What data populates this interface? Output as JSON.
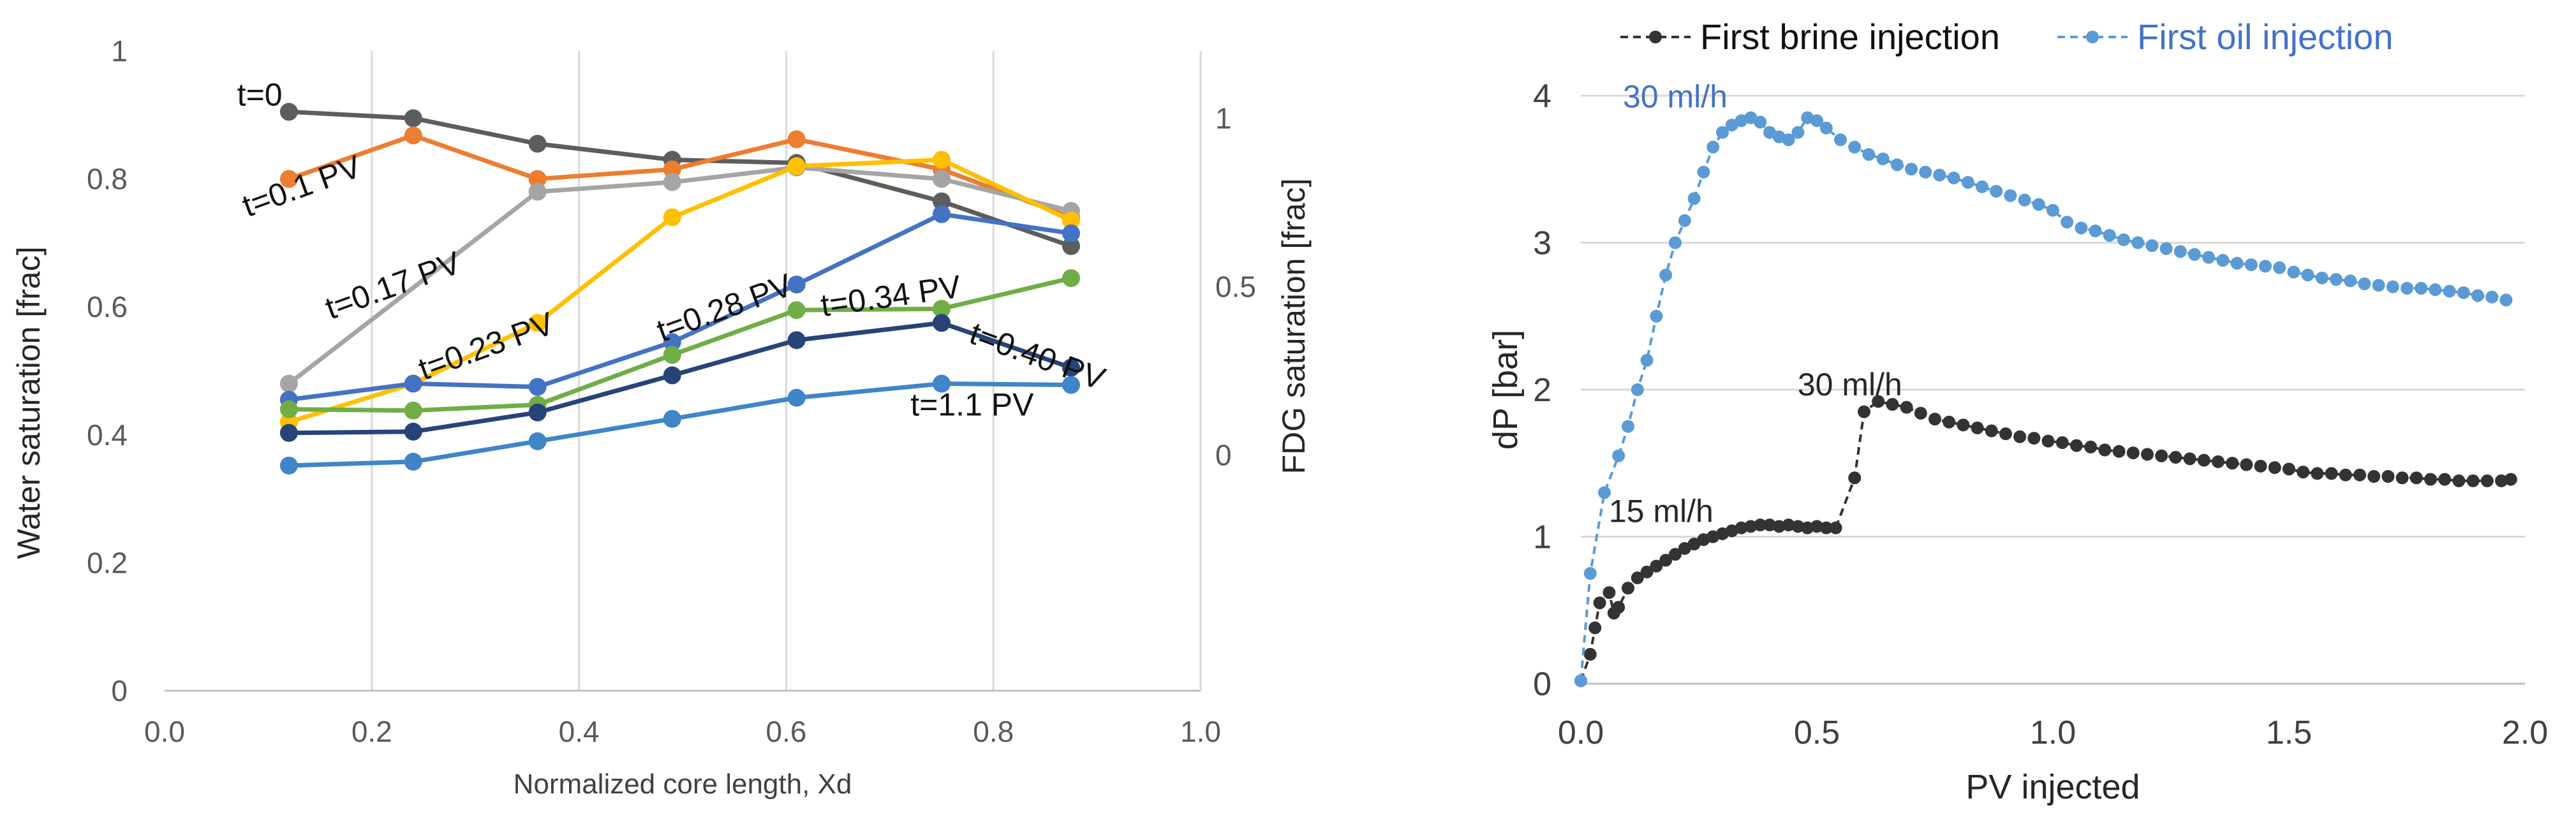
{
  "chart_data": [
    {
      "type": "line",
      "title": "",
      "xlabel": "Normalized core length, Xd",
      "ylabel": "Water saturation [frac]",
      "y2label": "FDG saturation [frac]",
      "xlim": [
        0.0,
        1.0
      ],
      "ylim": [
        0,
        1
      ],
      "xticks": [
        "0.0",
        "0.2",
        "0.4",
        "0.6",
        "0.8",
        "1.0"
      ],
      "yticks": [
        "0",
        "0.2",
        "0.4",
        "0.6",
        "0.8",
        "1"
      ],
      "y2ticks": [
        "0",
        "0.5",
        "1"
      ],
      "grid": "vertical",
      "x": [
        0.12,
        0.24,
        0.36,
        0.49,
        0.61,
        0.75,
        0.875
      ],
      "series": [
        {
          "name": "t=0",
          "label": "t=0",
          "color": "#5d5d5d",
          "values": [
            0.905,
            0.895,
            0.855,
            0.83,
            0.825,
            0.765,
            0.695
          ]
        },
        {
          "name": "t=0.1 PV",
          "label": "t=0.1 PV",
          "color": "#ed7d31",
          "values": [
            0.8,
            0.868,
            0.8,
            0.815,
            0.862,
            0.815,
            0.74
          ]
        },
        {
          "name": "t=0.17 PV",
          "label": "t=0.17 PV",
          "color": "#a5a5a5",
          "values": [
            0.48,
            null,
            0.78,
            0.795,
            0.818,
            0.8,
            0.75
          ]
        },
        {
          "name": "t=0.23 PV",
          "label": "t=0.23 PV",
          "color": "#ffc000",
          "values": [
            0.42,
            0.48,
            0.575,
            0.74,
            0.82,
            0.83,
            0.735
          ]
        },
        {
          "name": "t=0.28 PV",
          "label": "t=0.28 PV",
          "color": "#4472c4",
          "values": [
            0.455,
            0.48,
            0.475,
            0.545,
            0.635,
            0.745,
            0.715
          ]
        },
        {
          "name": "t=0.34 PV",
          "label": "t=0.34 PV",
          "color": "#70ad47",
          "values": [
            0.44,
            0.438,
            0.447,
            0.525,
            0.595,
            0.597,
            0.645
          ]
        },
        {
          "name": "t=0.40 PV",
          "label": "t=0.40 PV",
          "color": "#264478",
          "values": [
            0.403,
            0.405,
            0.435,
            0.493,
            0.548,
            0.575,
            0.505
          ]
        },
        {
          "name": "t=1.1 PV",
          "label": "t=1.1 PV",
          "color": "#3f85c8",
          "values": [
            0.352,
            0.358,
            0.39,
            0.425,
            0.458,
            0.48,
            0.478
          ]
        }
      ]
    },
    {
      "type": "line",
      "title": "",
      "xlabel": "PV injected",
      "ylabel": "dP [bar]",
      "xlim": [
        0.0,
        2.0
      ],
      "ylim": [
        0,
        4
      ],
      "xticks": [
        "0.0",
        "0.5",
        "1.0",
        "1.5",
        "2.0"
      ],
      "yticks": [
        "0",
        "1",
        "2",
        "3",
        "4"
      ],
      "grid": "horizontal",
      "legend": "top",
      "annotations": [
        {
          "text": "30 ml/h",
          "series": "First oil injection",
          "x": 0.2,
          "y": 3.92
        },
        {
          "text": "30 ml/h",
          "series": "First brine injection",
          "x": 0.57,
          "y": 1.96
        },
        {
          "text": "15 ml/h",
          "series": "First brine injection",
          "x": 0.17,
          "y": 1.1
        }
      ],
      "series": [
        {
          "name": "First brine injection",
          "color": "#333333",
          "style": "dashed",
          "x": [
            0.0,
            0.02,
            0.03,
            0.04,
            0.06,
            0.07,
            0.08,
            0.1,
            0.12,
            0.14,
            0.16,
            0.18,
            0.2,
            0.22,
            0.24,
            0.26,
            0.28,
            0.3,
            0.32,
            0.34,
            0.36,
            0.38,
            0.4,
            0.42,
            0.44,
            0.46,
            0.48,
            0.5,
            0.52,
            0.54,
            0.58,
            0.6,
            0.63,
            0.66,
            0.69,
            0.72,
            0.75,
            0.78,
            0.81,
            0.84,
            0.87,
            0.9,
            0.93,
            0.96,
            0.99,
            1.02,
            1.05,
            1.08,
            1.11,
            1.14,
            1.17,
            1.2,
            1.23,
            1.26,
            1.29,
            1.32,
            1.35,
            1.38,
            1.41,
            1.44,
            1.47,
            1.5,
            1.53,
            1.56,
            1.59,
            1.62,
            1.65,
            1.68,
            1.71,
            1.74,
            1.77,
            1.8,
            1.83,
            1.86,
            1.89,
            1.92,
            1.95,
            1.97
          ],
          "values": [
            0.02,
            0.2,
            0.38,
            0.55,
            0.62,
            0.48,
            0.52,
            0.65,
            0.72,
            0.76,
            0.8,
            0.84,
            0.88,
            0.92,
            0.95,
            0.98,
            1.0,
            1.02,
            1.04,
            1.06,
            1.07,
            1.08,
            1.08,
            1.07,
            1.08,
            1.07,
            1.06,
            1.07,
            1.06,
            1.06,
            1.4,
            1.85,
            1.92,
            1.9,
            1.88,
            1.84,
            1.8,
            1.78,
            1.76,
            1.74,
            1.72,
            1.7,
            1.68,
            1.67,
            1.65,
            1.64,
            1.62,
            1.61,
            1.59,
            1.58,
            1.57,
            1.56,
            1.55,
            1.54,
            1.53,
            1.52,
            1.51,
            1.5,
            1.49,
            1.48,
            1.47,
            1.46,
            1.44,
            1.43,
            1.43,
            1.42,
            1.42,
            1.41,
            1.41,
            1.4,
            1.4,
            1.39,
            1.39,
            1.38,
            1.38,
            1.38,
            1.38,
            1.39
          ]
        },
        {
          "name": "First oil injection",
          "color": "#5b9bd5",
          "style": "dashed",
          "x": [
            0.0,
            0.02,
            0.05,
            0.08,
            0.1,
            0.12,
            0.14,
            0.16,
            0.18,
            0.2,
            0.22,
            0.24,
            0.26,
            0.28,
            0.3,
            0.32,
            0.34,
            0.36,
            0.38,
            0.4,
            0.42,
            0.44,
            0.46,
            0.48,
            0.5,
            0.52,
            0.55,
            0.58,
            0.61,
            0.64,
            0.67,
            0.7,
            0.73,
            0.76,
            0.79,
            0.82,
            0.85,
            0.88,
            0.91,
            0.94,
            0.97,
            1.0,
            1.03,
            1.06,
            1.09,
            1.12,
            1.15,
            1.18,
            1.21,
            1.24,
            1.27,
            1.3,
            1.33,
            1.36,
            1.39,
            1.42,
            1.45,
            1.48,
            1.51,
            1.54,
            1.57,
            1.6,
            1.63,
            1.66,
            1.69,
            1.72,
            1.75,
            1.78,
            1.81,
            1.84,
            1.87,
            1.9,
            1.93,
            1.96
          ],
          "values": [
            0.02,
            0.75,
            1.3,
            1.55,
            1.75,
            2.0,
            2.2,
            2.5,
            2.78,
            3.0,
            3.15,
            3.3,
            3.48,
            3.65,
            3.75,
            3.8,
            3.83,
            3.85,
            3.82,
            3.75,
            3.72,
            3.7,
            3.75,
            3.85,
            3.83,
            3.78,
            3.7,
            3.65,
            3.6,
            3.57,
            3.53,
            3.5,
            3.48,
            3.46,
            3.44,
            3.41,
            3.38,
            3.35,
            3.32,
            3.29,
            3.26,
            3.22,
            3.14,
            3.1,
            3.08,
            3.05,
            3.02,
            3.0,
            2.98,
            2.96,
            2.94,
            2.92,
            2.9,
            2.88,
            2.86,
            2.85,
            2.84,
            2.83,
            2.8,
            2.78,
            2.76,
            2.75,
            2.74,
            2.72,
            2.71,
            2.7,
            2.69,
            2.69,
            2.68,
            2.67,
            2.66,
            2.64,
            2.63,
            2.61
          ]
        }
      ]
    }
  ]
}
